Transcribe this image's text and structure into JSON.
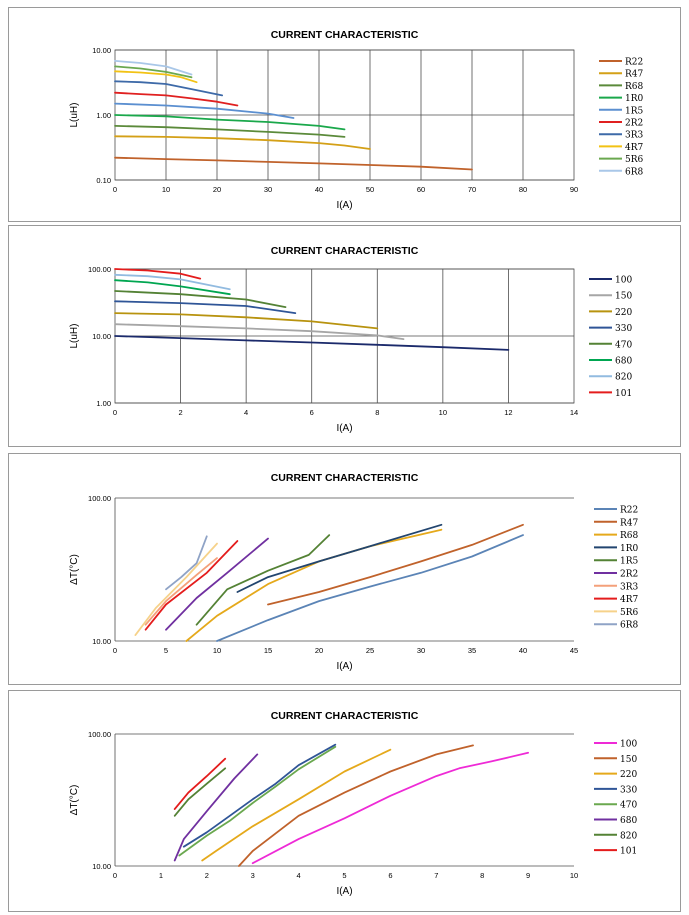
{
  "chart_data": [
    {
      "type": "line",
      "title": "CURRENT CHARACTERISTIC",
      "xlabel": "I(A)",
      "ylabel": "L(uH)",
      "yscale": "log",
      "xlim": [
        0,
        90
      ],
      "ylim": [
        0.1,
        10
      ],
      "xticks": [
        "0",
        "10",
        "20",
        "30",
        "40",
        "50",
        "60",
        "70",
        "80",
        "90"
      ],
      "yticks": [
        "0.10",
        "1.00",
        "10.00"
      ],
      "grid": "vertical and horizontal major lines",
      "legend": "right",
      "series": [
        {
          "name": "R22",
          "color": "#c0622b",
          "x": [
            0,
            10,
            20,
            30,
            40,
            50,
            60,
            70
          ],
          "y": [
            0.22,
            0.21,
            0.2,
            0.19,
            0.18,
            0.17,
            0.16,
            0.145
          ]
        },
        {
          "name": "R47",
          "color": "#d4a017",
          "x": [
            0,
            10,
            20,
            30,
            40,
            45,
            50
          ],
          "y": [
            0.47,
            0.46,
            0.44,
            0.41,
            0.37,
            0.34,
            0.3
          ]
        },
        {
          "name": "R68",
          "color": "#5b8a3a",
          "x": [
            0,
            10,
            20,
            30,
            40,
            45
          ],
          "y": [
            0.68,
            0.65,
            0.6,
            0.55,
            0.5,
            0.46
          ]
        },
        {
          "name": "1R0",
          "color": "#1aa84b",
          "x": [
            0,
            10,
            20,
            30,
            40,
            45
          ],
          "y": [
            1.0,
            0.95,
            0.85,
            0.78,
            0.68,
            0.6
          ]
        },
        {
          "name": "1R5",
          "color": "#5b8fd0",
          "x": [
            0,
            10,
            20,
            30,
            35
          ],
          "y": [
            1.5,
            1.4,
            1.25,
            1.05,
            0.9
          ]
        },
        {
          "name": "2R2",
          "color": "#e02020",
          "x": [
            0,
            5,
            10,
            15,
            20,
            24
          ],
          "y": [
            2.2,
            2.1,
            2.0,
            1.8,
            1.6,
            1.4
          ]
        },
        {
          "name": "3R3",
          "color": "#3e6aa8",
          "x": [
            0,
            5,
            10,
            15,
            21
          ],
          "y": [
            3.3,
            3.2,
            3.0,
            2.5,
            2.0
          ]
        },
        {
          "name": "4R7",
          "color": "#f2c214",
          "x": [
            0,
            5,
            10,
            13,
            16
          ],
          "y": [
            4.7,
            4.5,
            4.2,
            3.8,
            3.2
          ]
        },
        {
          "name": "5R6",
          "color": "#6aa84f",
          "x": [
            0,
            5,
            10,
            15
          ],
          "y": [
            5.6,
            5.2,
            4.6,
            3.8
          ]
        },
        {
          "name": "6R8",
          "color": "#a9c7e8",
          "x": [
            0,
            5,
            10,
            15
          ],
          "y": [
            6.8,
            6.3,
            5.6,
            4.2
          ]
        }
      ]
    },
    {
      "type": "line",
      "title": "CURRENT CHARACTERISTIC",
      "xlabel": "I(A)",
      "ylabel": "L(uH)",
      "yscale": "log",
      "xlim": [
        0,
        14
      ],
      "ylim": [
        1,
        100
      ],
      "xticks": [
        "0",
        "2",
        "4",
        "6",
        "8",
        "10",
        "12",
        "14"
      ],
      "yticks": [
        "1.00",
        "10.00",
        "100.00"
      ],
      "grid": "vertical and horizontal major lines",
      "legend": "right",
      "series": [
        {
          "name": "100",
          "color": "#1b2a6b",
          "x": [
            0,
            2,
            4,
            6,
            8,
            10,
            12
          ],
          "y": [
            10,
            9.3,
            8.6,
            8.0,
            7.4,
            6.8,
            6.2
          ]
        },
        {
          "name": "150",
          "color": "#a6a6a6",
          "x": [
            0,
            2,
            4,
            6,
            8,
            8.8
          ],
          "y": [
            15,
            14,
            13,
            11.8,
            10.2,
            9.0
          ]
        },
        {
          "name": "220",
          "color": "#b8930f",
          "x": [
            0,
            2,
            4,
            6,
            8
          ],
          "y": [
            22,
            21,
            19,
            16.5,
            13
          ]
        },
        {
          "name": "330",
          "color": "#2f5597",
          "x": [
            0,
            2,
            4,
            5.5
          ],
          "y": [
            33,
            31,
            28,
            22
          ]
        },
        {
          "name": "470",
          "color": "#548235",
          "x": [
            0,
            2,
            4,
            5.2
          ],
          "y": [
            47,
            42,
            35,
            27
          ]
        },
        {
          "name": "680",
          "color": "#00a651",
          "x": [
            0,
            1,
            2,
            3.5
          ],
          "y": [
            68,
            63,
            55,
            42
          ]
        },
        {
          "name": "820",
          "color": "#92bbe0",
          "x": [
            0,
            1,
            2,
            3.5
          ],
          "y": [
            82,
            78,
            70,
            50
          ]
        },
        {
          "name": "101",
          "color": "#e41c1c",
          "x": [
            0,
            1,
            2,
            2.6
          ],
          "y": [
            100,
            95,
            85,
            72
          ]
        }
      ]
    },
    {
      "type": "line",
      "title": "CURRENT CHARACTERISTIC",
      "xlabel": "I(A)",
      "ylabel": "ΔT(°C)",
      "yscale": "log",
      "xlim": [
        0,
        45
      ],
      "ylim": [
        10,
        100
      ],
      "xticks": [
        "0",
        "5",
        "10",
        "15",
        "20",
        "25",
        "30",
        "35",
        "40",
        "45"
      ],
      "yticks": [
        "10.00",
        "100.00"
      ],
      "grid": "top and left frame only",
      "legend": "right",
      "series": [
        {
          "name": "R22",
          "color": "#5b84b6",
          "x": [
            10,
            15,
            20,
            25,
            30,
            35,
            40
          ],
          "y": [
            10,
            14,
            19,
            24,
            30,
            39,
            55
          ]
        },
        {
          "name": "R47",
          "color": "#c0622b",
          "x": [
            15,
            20,
            25,
            30,
            35,
            40
          ],
          "y": [
            18,
            22,
            28,
            36,
            47,
            65
          ]
        },
        {
          "name": "R68",
          "color": "#e5a91b",
          "x": [
            7,
            10,
            15,
            20,
            25,
            32
          ],
          "y": [
            10,
            15,
            25,
            36,
            46,
            60
          ]
        },
        {
          "name": "1R0",
          "color": "#22456f",
          "x": [
            12,
            15,
            20,
            25,
            32
          ],
          "y": [
            22,
            28,
            36,
            46,
            65
          ]
        },
        {
          "name": "1R5",
          "color": "#548235",
          "x": [
            8,
            11,
            15,
            19,
            21
          ],
          "y": [
            13,
            23,
            31,
            40,
            55
          ]
        },
        {
          "name": "2R2",
          "color": "#7030a0",
          "x": [
            5,
            8,
            11,
            15
          ],
          "y": [
            12,
            20,
            30,
            52
          ]
        },
        {
          "name": "3R3",
          "color": "#f4a07a",
          "x": [
            3,
            5,
            8,
            10
          ],
          "y": [
            13,
            19,
            29,
            38
          ]
        },
        {
          "name": "4R7",
          "color": "#e41c1c",
          "x": [
            3,
            5,
            9,
            12
          ],
          "y": [
            12,
            18,
            30,
            50
          ]
        },
        {
          "name": "5R6",
          "color": "#f6d28a",
          "x": [
            2,
            4,
            7,
            10
          ],
          "y": [
            11,
            17,
            28,
            48
          ]
        },
        {
          "name": "6R8",
          "color": "#8fa3c6",
          "x": [
            5,
            6.5,
            8,
            9
          ],
          "y": [
            23,
            28,
            35,
            54
          ]
        }
      ]
    },
    {
      "type": "line",
      "title": "CURRENT CHARACTERISTIC",
      "xlabel": "I(A)",
      "ylabel": "ΔT(°C)",
      "yscale": "log",
      "xlim": [
        0,
        10
      ],
      "ylim": [
        10,
        100
      ],
      "xticks": [
        "0",
        "1",
        "2",
        "3",
        "4",
        "5",
        "6",
        "7",
        "8",
        "9",
        "10"
      ],
      "yticks": [
        "10.00",
        "100.00"
      ],
      "grid": "top and left frame only",
      "legend": "right",
      "series": [
        {
          "name": "100",
          "color": "#ee2ad6",
          "x": [
            3.0,
            4,
            5,
            6,
            7,
            7.5,
            8.2,
            9
          ],
          "y": [
            10.5,
            16,
            23,
            34,
            48,
            55,
            62,
            72
          ]
        },
        {
          "name": "150",
          "color": "#c0622b",
          "x": [
            2.7,
            3,
            4,
            5,
            6,
            7,
            7.8
          ],
          "y": [
            10,
            13,
            24,
            36,
            52,
            70,
            82
          ]
        },
        {
          "name": "220",
          "color": "#e5a91b",
          "x": [
            1.9,
            2.2,
            3,
            4,
            5,
            6
          ],
          "y": [
            11,
            13,
            20,
            32,
            52,
            76
          ]
        },
        {
          "name": "330",
          "color": "#2f5597",
          "x": [
            1.5,
            2,
            2.5,
            3,
            3.5,
            4,
            4.8
          ],
          "y": [
            14,
            18,
            24,
            32,
            42,
            58,
            83
          ]
        },
        {
          "name": "470",
          "color": "#6aa84f",
          "x": [
            1.4,
            2,
            2.5,
            3,
            3.5,
            4,
            4.8
          ],
          "y": [
            12,
            17,
            22,
            30,
            40,
            54,
            80
          ]
        },
        {
          "name": "680",
          "color": "#7030a0",
          "x": [
            1.3,
            1.5,
            2,
            2.6,
            3.1
          ],
          "y": [
            11,
            16,
            26,
            46,
            70
          ]
        },
        {
          "name": "820",
          "color": "#548235",
          "x": [
            1.3,
            1.6,
            2,
            2.4
          ],
          "y": [
            24,
            32,
            42,
            55
          ]
        },
        {
          "name": "101",
          "color": "#e41c1c",
          "x": [
            1.3,
            1.6,
            2,
            2.4
          ],
          "y": [
            27,
            36,
            48,
            65
          ]
        }
      ]
    }
  ]
}
